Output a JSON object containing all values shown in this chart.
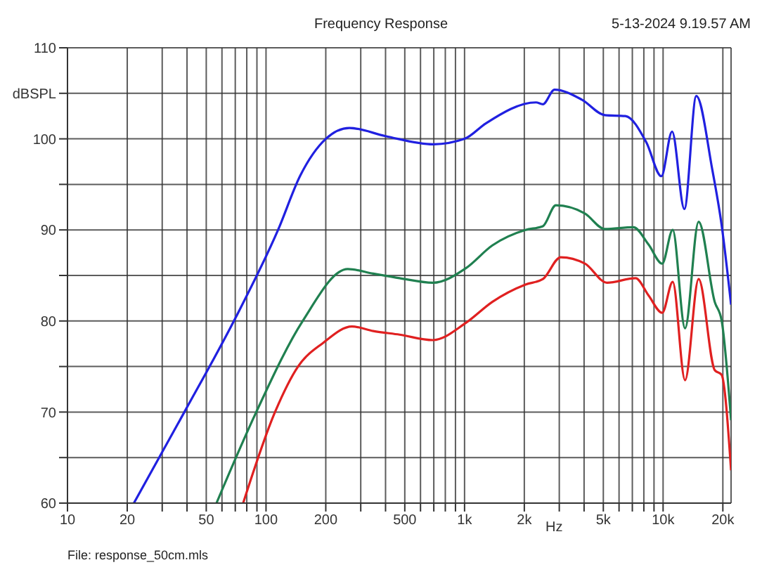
{
  "chart_data": {
    "type": "line",
    "title": "Frequency Response",
    "xlabel": "Hz",
    "annotations": [
      "5-13-2024 9.19.57 AM",
      "File: response_50cm.mls"
    ],
    "log": "x",
    "grid": true,
    "legend": false,
    "marker": "none",
    "line_style": "solid",
    "xlim": [
      10,
      22000
    ],
    "ylim": [
      60,
      110
    ],
    "xticks": [
      10,
      20,
      {
        "value": 30,
        "label": null
      },
      {
        "value": 40,
        "label": null
      },
      50,
      {
        "value": 60,
        "label": null
      },
      {
        "value": 70,
        "label": null
      },
      {
        "value": 80,
        "label": null
      },
      {
        "value": 90,
        "label": null
      },
      100,
      200,
      {
        "value": 300,
        "label": null
      },
      {
        "value": 400,
        "label": null
      },
      500,
      {
        "value": 600,
        "label": null
      },
      {
        "value": 700,
        "label": null
      },
      {
        "value": 800,
        "label": null
      },
      {
        "value": 900,
        "label": null
      },
      {
        "value": 1000,
        "label": "1k"
      },
      {
        "value": 2000,
        "label": "2k"
      },
      {
        "value": 3000,
        "label": null
      },
      {
        "value": 4000,
        "label": null
      },
      {
        "value": 5000,
        "label": "5k"
      },
      {
        "value": 6000,
        "label": null
      },
      {
        "value": 7000,
        "label": null
      },
      {
        "value": 8000,
        "label": null
      },
      {
        "value": 9000,
        "label": null
      },
      {
        "value": 10000,
        "label": "10k"
      },
      {
        "value": 20000,
        "label": "20k"
      }
    ],
    "yticks": [
      60,
      {
        "value": 65,
        "label": null
      },
      70,
      {
        "value": 75,
        "label": null
      },
      80,
      {
        "value": 85,
        "label": null
      },
      90,
      {
        "value": 95,
        "label": null
      },
      100,
      {
        "value": 105,
        "label": "dBSPL"
      },
      110
    ],
    "series": [
      {
        "color": "#2020e0",
        "x": [
          21.6,
          38.8,
          68.9,
          115,
          149,
          200,
          263,
          400,
          697,
          1000,
          1280,
          2290,
          2480,
          2840,
          3900,
          5090,
          6450,
          8240,
          9800,
          11100,
          12800,
          14700,
          17700,
          19700,
          22000
        ],
        "values": [
          60,
          70,
          80,
          90,
          96,
          100,
          101.2,
          100.3,
          99.4,
          100,
          101.7,
          104,
          103.8,
          105.4,
          104.3,
          102.6,
          102.5,
          99.6,
          95.9,
          100.8,
          92.3,
          104.7,
          96.6,
          90.6,
          81.8
        ]
      },
      {
        "color": "#208050",
        "x": [
          56.3,
          89.3,
          153,
          258,
          347,
          471,
          692,
          1016,
          1380,
          2027,
          2480,
          2885,
          4040,
          5090,
          7080,
          8450,
          9900,
          11180,
          12900,
          15100,
          18200,
          19700,
          22000
        ],
        "values": [
          60,
          70,
          80,
          85.7,
          85.2,
          84.7,
          84.2,
          85.8,
          88.3,
          90,
          90.4,
          92.7,
          91.8,
          90.1,
          90.3,
          88.4,
          86.3,
          90,
          79.2,
          90.9,
          82.1,
          80.1,
          69.1
        ]
      },
      {
        "color": "#e02020",
        "x": [
          76.7,
          111,
          145,
          194,
          271,
          347,
          471,
          692,
          1016,
          1380,
          2027,
          2480,
          3050,
          4040,
          5220,
          7270,
          8450,
          9900,
          11180,
          12900,
          15100,
          18200,
          19700,
          22000
        ],
        "values": [
          60,
          70,
          75,
          77.6,
          79.4,
          78.9,
          78.5,
          77.9,
          79.8,
          82.1,
          84,
          84.6,
          87,
          86.3,
          84.2,
          84.7,
          82.8,
          80.9,
          84.3,
          73.5,
          84.6,
          74.6,
          74.1,
          63.6
        ]
      }
    ]
  }
}
